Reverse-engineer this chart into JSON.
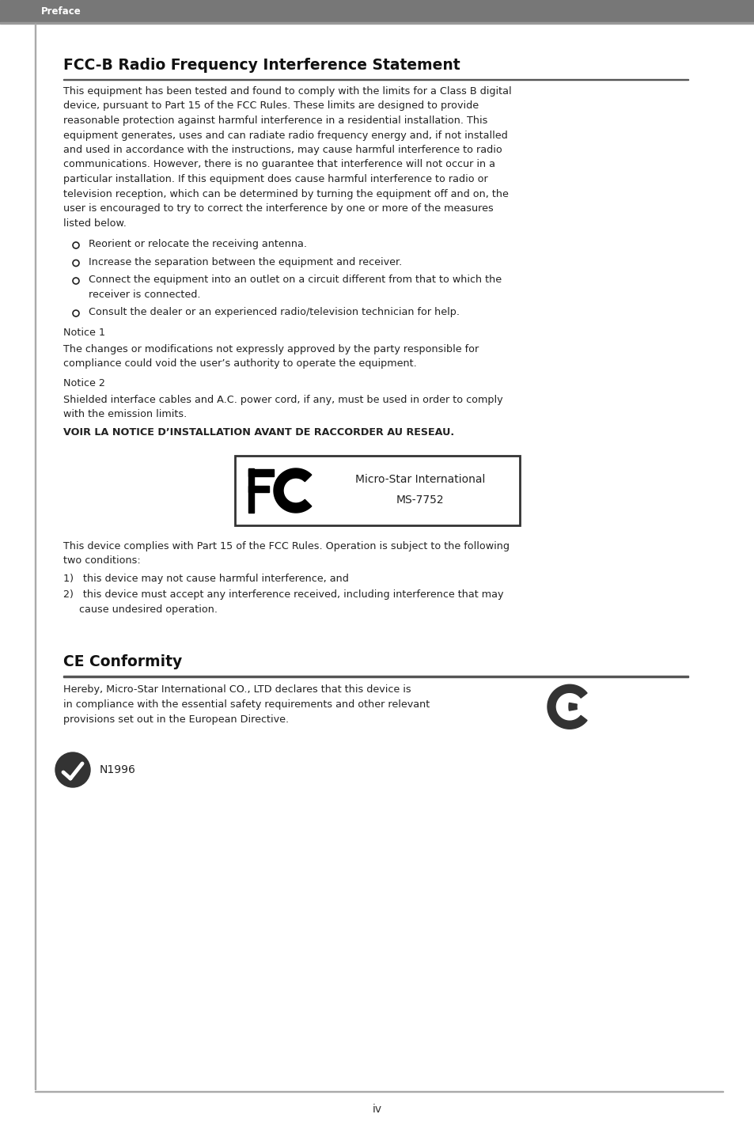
{
  "page_bg": "#ffffff",
  "header_bg": "#777777",
  "header_text": "Preface",
  "header_text_color": "#ffffff",
  "title_fcc": "FCC-B Radio Frequency Interference Statement",
  "title_ce": "CE Conformity",
  "footer_text": "iv",
  "body_text_color": "#222222",
  "title_color": "#111111",
  "fcc_body_lines": [
    "This equipment has been tested and found to comply with the limits for a Class B digital",
    "device, pursuant to Part 15 of the FCC Rules. These limits are designed to provide",
    "reasonable protection against harmful interference in a residential installation. This",
    "equipment generates, uses and can radiate radio frequency energy and, if not installed",
    "and used in accordance with the instructions, may cause harmful interference to radio",
    "communications. However, there is no guarantee that interference will not occur in a",
    "particular installation. If this equipment does cause harmful interference to radio or",
    "television reception, which can be determined by turning the equipment off and on, the",
    "user is encouraged to try to correct the interference by one or more of the measures",
    "listed below."
  ],
  "bullets": [
    "Reorient or relocate the receiving antenna.",
    "Increase the separation between the equipment and receiver.",
    "Connect the equipment into an outlet on a circuit different from that to which the|receiver is connected.",
    "Consult the dealer or an experienced radio/television technician for help."
  ],
  "notice1_label": "Notice 1",
  "notice1_lines": [
    "The changes or modifications not expressly approved by the party responsible for",
    "compliance could void the user’s authority to operate the equipment."
  ],
  "notice2_label": "Notice 2",
  "notice2_lines": [
    "Shielded interface cables and A.C. power cord, if any, must be used in order to comply",
    "with the emission limits."
  ],
  "voir_text": "VOIR LA NOTICE D’INSTALLATION AVANT DE RACCORDER AU RESEAU.",
  "fcc_box_company": "Micro-Star International",
  "fcc_box_model": "MS-7752",
  "part15_lines": [
    "This device complies with Part 15 of the FCC Rules. Operation is subject to the following",
    "two conditions:"
  ],
  "condition1": "1)   this device may not cause harmful interference, and",
  "condition2_lines": [
    "2)   this device must accept any interference received, including interference that may",
    "     cause undesired operation."
  ],
  "ce_body_lines": [
    "Hereby, Micro-Star International CO., LTD declares that this device is",
    "in compliance with the essential safety requirements and other relevant",
    "provisions set out in the European Directive."
  ],
  "n1996": "N1996"
}
